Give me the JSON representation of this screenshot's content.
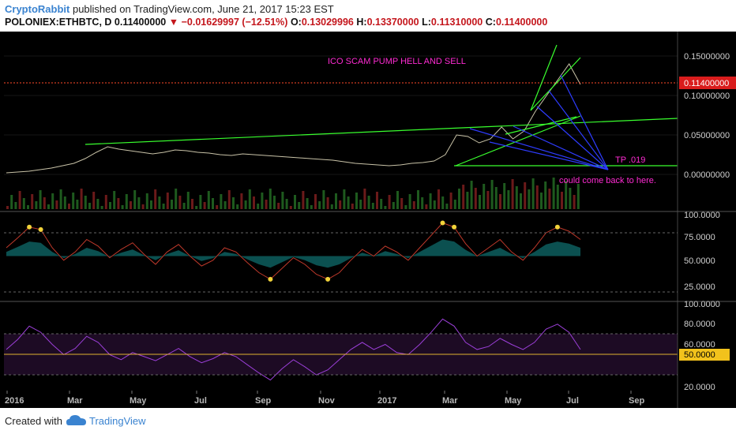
{
  "header": {
    "author": "CryptoRabbit",
    "published_text": "published on TradingView.com, June 21, 2017 15:23 EST",
    "symbol": "POLONIEX:ETHBTC, D",
    "price": "0.11400000",
    "change": "−0.01629997 (−12.51%)",
    "open_label": "O:",
    "open": "0.13029996",
    "high_label": "H:",
    "high": "0.13370000",
    "low_label": "L:",
    "low": "0.11310000",
    "close_label": "C:",
    "close": "0.11400000"
  },
  "footer": {
    "created_with": "Created with",
    "brand": "TradingView"
  },
  "chart_data": [
    {
      "type": "line",
      "panel": "price",
      "x_axis": {
        "ticks": [
          "2016",
          "Mar",
          "May",
          "Jul",
          "Sep",
          "Nov",
          "2017",
          "Mar",
          "May",
          "Jul",
          "Sep"
        ]
      },
      "y_axis": {
        "ticks": [
          "0.15000000",
          "0.10000000",
          "0.05000000",
          "0.00000000"
        ],
        "range": [
          -0.02,
          0.17
        ]
      },
      "last_price_label": "0.11400000",
      "annotations": {
        "title_note": "ICO SCAM PUMP HELL AND SELL",
        "target": "TP .019",
        "comment": "could come back to here."
      },
      "series": [
        {
          "values": [
            0.002,
            0.003,
            0.004,
            0.006,
            0.008,
            0.011,
            0.014,
            0.02,
            0.028,
            0.035,
            0.032,
            0.03,
            0.028,
            0.026,
            0.028,
            0.031,
            0.03,
            0.028,
            0.027,
            0.025,
            0.024,
            0.026,
            0.025,
            0.024,
            0.023,
            0.022,
            0.021,
            0.02,
            0.019,
            0.018,
            0.016,
            0.014,
            0.013,
            0.012,
            0.011,
            0.012,
            0.014,
            0.015,
            0.017,
            0.025,
            0.05,
            0.048,
            0.04,
            0.045,
            0.06,
            0.045,
            0.055,
            0.08,
            0.1,
            0.12,
            0.14,
            0.114
          ]
        }
      ]
    },
    {
      "type": "line",
      "panel": "stochastic",
      "y_axis": {
        "ticks": [
          "100.0000",
          "75.0000",
          "50.0000",
          "25.0000"
        ],
        "range": [
          0,
          100
        ]
      },
      "series": [
        {
          "values": [
            60,
            72,
            85,
            82,
            60,
            45,
            55,
            70,
            62,
            48,
            58,
            66,
            52,
            40,
            55,
            64,
            50,
            38,
            45,
            60,
            55,
            42,
            30,
            22,
            35,
            48,
            40,
            28,
            22,
            30,
            45,
            58,
            50,
            62,
            55,
            45,
            60,
            75,
            90,
            85,
            65,
            50,
            60,
            70,
            55,
            45,
            60,
            78,
            85,
            80,
            70
          ]
        }
      ]
    },
    {
      "type": "line",
      "panel": "rsi",
      "y_axis": {
        "ticks": [
          "100.0000",
          "80.0000",
          "60.0000",
          "50.0000",
          "20.0000"
        ],
        "range": [
          0,
          100
        ]
      },
      "level_label": "50.0000",
      "series": [
        {
          "values": [
            55,
            65,
            78,
            72,
            60,
            50,
            56,
            68,
            62,
            50,
            45,
            52,
            48,
            44,
            50,
            56,
            48,
            42,
            46,
            52,
            48,
            40,
            32,
            25,
            36,
            45,
            38,
            30,
            35,
            45,
            55,
            62,
            55,
            60,
            52,
            50,
            60,
            72,
            85,
            78,
            62,
            55,
            58,
            66,
            60,
            55,
            62,
            75,
            80,
            72,
            55
          ]
        }
      ]
    }
  ]
}
